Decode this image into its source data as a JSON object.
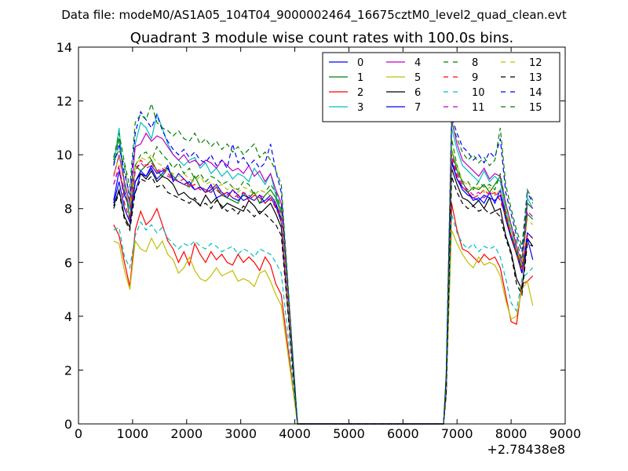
{
  "suptitle": "Data file: modeM0/AS1A05_104T04_9000002464_16675cztM0_level2_quad_clean.evt",
  "chart_data": {
    "type": "line",
    "title": "Quadrant 3 module wise count rates with 100.0s bins.",
    "xlabel": "",
    "ylabel": "",
    "x_offset_label": "+2.78438e8",
    "xlim": [
      0,
      9000
    ],
    "ylim": [
      0,
      14
    ],
    "xticks": [
      0,
      1000,
      2000,
      3000,
      4000,
      5000,
      6000,
      7000,
      8000,
      9000
    ],
    "yticks": [
      0,
      2,
      4,
      6,
      8,
      10,
      12,
      14
    ],
    "grid": false,
    "legend_placement": "top-right",
    "legend_columns": 4,
    "segments": [
      {
        "name": "seg1",
        "start": 650,
        "step": 100,
        "count": 32
      },
      {
        "name": "seg2",
        "start": 6750,
        "step": 100,
        "count": 17
      }
    ],
    "zero_gap": {
      "from": 4050,
      "to": 6750,
      "value": 0
    },
    "series": [
      {
        "name": "0",
        "color": "#0000ff",
        "dash": "solid",
        "seg1": [
          8.3,
          9.4,
          8.5,
          8.0,
          8.6,
          9.3,
          9.2,
          9.5,
          9.1,
          9.3,
          9.6,
          9.0,
          9.3,
          9.1,
          8.9,
          8.7,
          8.8,
          8.6,
          8.7,
          8.9,
          8.6,
          8.4,
          8.7,
          8.5,
          8.3,
          8.4,
          8.6,
          8.2,
          8.3,
          8.5,
          8.2,
          7.6
        ],
        "seg2": [
          1.2,
          9.8,
          9.1,
          8.8,
          8.6,
          8.3,
          8.4,
          8.2,
          8.6,
          8.2,
          8.7,
          7.7,
          7.0,
          6.5,
          5.6,
          7.1,
          6.9
        ]
      },
      {
        "name": "1",
        "color": "#008000",
        "dash": "solid",
        "seg1": [
          9.8,
          10.6,
          8.9,
          7.6,
          9.6,
          9.4,
          9.6,
          9.8,
          9.4,
          9.2,
          9.5,
          9.2,
          9.0,
          8.9,
          8.8,
          9.2,
          8.8,
          8.7,
          8.6,
          8.8,
          8.5,
          8.4,
          8.3,
          8.2,
          8.6,
          8.4,
          8.6,
          8.2,
          8.5,
          8.7,
          8.4,
          7.8
        ],
        "seg2": [
          1.4,
          10.2,
          9.4,
          9.0,
          8.6,
          8.8,
          8.7,
          8.9,
          8.6,
          8.9,
          9.2,
          7.8,
          7.0,
          6.4,
          5.8,
          7.8,
          7.6
        ]
      },
      {
        "name": "2",
        "color": "#ff0000",
        "dash": "solid",
        "seg1": [
          7.4,
          7.0,
          6.0,
          5.1,
          7.2,
          7.9,
          7.4,
          7.6,
          8.0,
          7.4,
          6.8,
          6.5,
          6.0,
          6.4,
          5.9,
          6.7,
          6.3,
          6.0,
          6.4,
          6.1,
          6.3,
          6.0,
          5.9,
          6.3,
          6.0,
          6.2,
          6.0,
          5.7,
          6.2,
          5.9,
          5.2,
          4.8
        ],
        "seg2": [
          1.3,
          8.2,
          7.2,
          6.5,
          6.4,
          6.2,
          6.0,
          6.3,
          6.1,
          6.2,
          5.8,
          4.8,
          3.8,
          3.7,
          5.2,
          5.3,
          5.5
        ]
      },
      {
        "name": "3",
        "color": "#00bfbf",
        "dash": "solid",
        "seg1": [
          9.6,
          11.0,
          8.7,
          8.0,
          10.4,
          11.2,
          11.0,
          10.6,
          11.5,
          11.0,
          10.4,
          10.0,
          9.8,
          9.6,
          9.8,
          9.9,
          9.5,
          9.7,
          9.3,
          9.5,
          9.2,
          9.4,
          9.1,
          9.3,
          9.2,
          9.0,
          9.5,
          9.2,
          8.9,
          9.3,
          8.5,
          7.9
        ],
        "seg2": [
          1.6,
          11.0,
          10.2,
          9.6,
          9.4,
          9.2,
          9.0,
          9.4,
          9.0,
          9.2,
          9.0,
          8.0,
          7.2,
          6.5,
          6.0,
          8.4,
          8.0
        ]
      },
      {
        "name": "4",
        "color": "#bf00bf",
        "dash": "solid",
        "seg1": [
          9.2,
          10.0,
          9.0,
          8.2,
          10.3,
          10.4,
          10.8,
          10.5,
          10.7,
          10.6,
          10.3,
          10.0,
          9.8,
          10.0,
          9.7,
          9.8,
          9.6,
          9.8,
          9.7,
          9.5,
          9.8,
          9.6,
          9.4,
          9.5,
          9.3,
          9.6,
          9.2,
          9.4,
          9.0,
          9.3,
          8.7,
          8.2
        ],
        "seg2": [
          1.5,
          11.3,
          10.4,
          9.8,
          9.6,
          9.4,
          9.2,
          9.5,
          9.1,
          9.3,
          9.2,
          8.2,
          7.4,
          6.6,
          5.9,
          8.2,
          8.0
        ]
      },
      {
        "name": "5",
        "color": "#bfbf00",
        "dash": "solid",
        "seg1": [
          6.8,
          6.7,
          5.7,
          5.0,
          6.8,
          6.5,
          6.4,
          6.9,
          6.5,
          6.8,
          6.3,
          6.1,
          5.6,
          5.8,
          6.2,
          5.7,
          5.4,
          5.3,
          5.5,
          5.8,
          5.5,
          5.6,
          5.7,
          5.3,
          5.4,
          5.3,
          5.1,
          5.6,
          5.7,
          5.3,
          4.8,
          4.4
        ],
        "seg2": [
          1.2,
          7.2,
          6.7,
          6.3,
          6.0,
          5.8,
          6.2,
          5.9,
          6.0,
          5.9,
          5.5,
          4.6,
          3.9,
          4.0,
          5.0,
          5.3,
          4.4
        ]
      },
      {
        "name": "6",
        "color": "#000000",
        "dash": "solid",
        "seg1": [
          8.1,
          8.7,
          7.7,
          7.3,
          9.0,
          9.3,
          9.1,
          9.4,
          9.0,
          9.2,
          9.1,
          8.9,
          8.5,
          8.6,
          8.4,
          8.3,
          8.1,
          8.5,
          8.2,
          8.4,
          8.0,
          8.2,
          8.1,
          8.0,
          7.9,
          8.3,
          8.1,
          7.8,
          8.0,
          8.2,
          7.8,
          7.3
        ],
        "seg2": [
          1.2,
          9.5,
          8.9,
          8.4,
          8.3,
          8.1,
          8.3,
          8.0,
          8.4,
          7.9,
          8.0,
          7.0,
          6.4,
          5.4,
          5.0,
          6.9,
          6.6
        ]
      },
      {
        "name": "7",
        "color": "#0000ff",
        "dash": "solid",
        "seg1": [
          8.2,
          9.0,
          8.0,
          7.5,
          9.0,
          9.4,
          9.2,
          9.6,
          9.3,
          9.4,
          9.5,
          9.1,
          9.0,
          8.9,
          9.0,
          8.7,
          8.8,
          8.6,
          8.9,
          8.4,
          8.5,
          8.6,
          8.4,
          8.3,
          8.5,
          8.4,
          8.3,
          8.5,
          8.2,
          8.4,
          8.1,
          7.5
        ],
        "seg2": [
          1.3,
          9.7,
          9.1,
          8.7,
          8.5,
          8.4,
          8.3,
          8.5,
          8.4,
          8.3,
          8.5,
          7.6,
          6.9,
          6.3,
          5.6,
          6.9,
          6.1
        ]
      },
      {
        "name": "8",
        "color": "#008000",
        "dash": "dashed",
        "seg1": [
          9.7,
          10.2,
          9.6,
          8.3,
          9.6,
          10.0,
          10.1,
          9.8,
          10.3,
          10.0,
          9.8,
          9.5,
          9.7,
          9.3,
          9.5,
          9.1,
          9.3,
          9.0,
          9.2,
          9.1,
          8.9,
          9.0,
          8.8,
          8.7,
          9.0,
          8.9,
          8.5,
          8.7,
          8.6,
          8.9,
          8.6,
          8.0
        ],
        "seg2": [
          1.5,
          10.6,
          9.6,
          9.0,
          9.0,
          8.7,
          9.0,
          8.8,
          8.9,
          8.7,
          9.3,
          8.2,
          7.4,
          6.8,
          6.1,
          8.2,
          8.0
        ]
      },
      {
        "name": "9",
        "color": "#ff0000",
        "dash": "dashed",
        "seg1": [
          8.9,
          9.6,
          8.2,
          7.6,
          9.4,
          9.8,
          9.6,
          9.7,
          9.4,
          9.5,
          9.3,
          9.1,
          9.0,
          9.1,
          8.8,
          8.9,
          8.7,
          8.6,
          8.8,
          8.7,
          8.5,
          8.6,
          8.4,
          8.5,
          8.6,
          8.3,
          8.5,
          8.4,
          8.2,
          8.4,
          8.0,
          7.6
        ],
        "seg2": [
          1.3,
          9.9,
          9.2,
          8.8,
          8.6,
          8.4,
          8.5,
          8.7,
          8.5,
          8.6,
          8.3,
          7.7,
          7.0,
          6.3,
          5.7,
          7.0,
          6.9
        ]
      },
      {
        "name": "10",
        "color": "#00bfbf",
        "dash": "dashed",
        "seg1": [
          7.2,
          7.3,
          6.2,
          5.8,
          7.0,
          7.5,
          7.2,
          7.4,
          7.1,
          7.3,
          6.9,
          6.7,
          6.5,
          6.7,
          6.6,
          6.8,
          6.6,
          6.5,
          6.7,
          6.6,
          6.4,
          6.5,
          6.6,
          6.3,
          6.5,
          6.4,
          6.2,
          6.5,
          6.4,
          6.3,
          6.0,
          5.6
        ],
        "seg2": [
          1.4,
          7.8,
          7.1,
          6.7,
          6.5,
          6.7,
          6.4,
          6.6,
          6.5,
          6.6,
          6.2,
          5.4,
          4.5,
          4.2,
          5.4,
          5.6,
          5.8
        ]
      },
      {
        "name": "11",
        "color": "#bf00bf",
        "dash": "dashed",
        "seg1": [
          8.9,
          9.5,
          8.6,
          8.1,
          9.4,
          9.7,
          9.5,
          9.6,
          9.3,
          9.5,
          9.2,
          9.1,
          9.0,
          8.9,
          8.9,
          8.7,
          8.8,
          8.7,
          8.6,
          8.8,
          8.6,
          8.5,
          8.7,
          8.4,
          8.6,
          8.5,
          8.3,
          8.5,
          8.4,
          8.3,
          8.2,
          7.7
        ],
        "seg2": [
          1.5,
          10.0,
          9.3,
          8.9,
          8.7,
          8.5,
          8.6,
          8.4,
          8.6,
          8.5,
          8.6,
          7.9,
          7.2,
          6.6,
          6.0,
          7.9,
          7.7
        ]
      },
      {
        "name": "12",
        "color": "#bfbf00",
        "dash": "dashed",
        "seg1": [
          9.3,
          9.9,
          8.8,
          8.1,
          9.6,
          9.9,
          9.8,
          10.0,
          9.7,
          9.6,
          9.4,
          9.3,
          9.2,
          9.3,
          9.1,
          9.0,
          9.2,
          8.9,
          9.0,
          8.8,
          8.9,
          8.7,
          8.8,
          8.6,
          8.8,
          8.7,
          8.5,
          8.7,
          8.6,
          8.5,
          8.3,
          7.8
        ],
        "seg2": [
          1.4,
          10.2,
          9.6,
          9.0,
          8.9,
          8.7,
          8.8,
          8.6,
          8.8,
          8.5,
          8.7,
          8.0,
          7.2,
          6.5,
          5.9,
          7.6,
          7.4
        ]
      },
      {
        "name": "13",
        "color": "#000000",
        "dash": "dashed",
        "seg1": [
          8.0,
          8.6,
          7.6,
          7.2,
          8.6,
          9.1,
          9.0,
          9.2,
          8.8,
          8.9,
          8.6,
          8.5,
          8.4,
          8.3,
          8.2,
          8.4,
          8.1,
          8.2,
          8.0,
          8.3,
          8.1,
          7.9,
          8.0,
          7.8,
          8.1,
          7.9,
          7.7,
          7.9,
          7.8,
          7.6,
          7.4,
          7.0
        ],
        "seg2": [
          1.1,
          9.2,
          8.6,
          8.2,
          8.0,
          8.1,
          7.9,
          8.0,
          7.8,
          7.9,
          7.7,
          6.9,
          6.3,
          5.2,
          4.8,
          6.7,
          6.6
        ]
      },
      {
        "name": "14",
        "color": "#0000ff",
        "dash": "dashed",
        "seg1": [
          9.6,
          10.4,
          9.3,
          8.5,
          10.8,
          11.6,
          11.3,
          11.0,
          11.5,
          10.9,
          10.5,
          10.2,
          10.0,
          10.2,
          9.9,
          10.1,
          9.8,
          9.7,
          10.0,
          9.6,
          9.8,
          9.5,
          10.4,
          9.7,
          9.9,
          9.6,
          9.8,
          9.5,
          9.7,
          10.4,
          9.4,
          8.6
        ],
        "seg2": [
          1.8,
          11.4,
          10.8,
          10.3,
          10.1,
          9.8,
          10.0,
          9.7,
          10.1,
          9.9,
          10.6,
          8.6,
          7.8,
          7.0,
          6.4,
          8.6,
          8.2
        ]
      },
      {
        "name": "15",
        "color": "#008000",
        "dash": "dashed",
        "seg1": [
          9.9,
          10.8,
          9.7,
          8.8,
          11.2,
          11.5,
          11.3,
          11.9,
          11.2,
          11.0,
          10.9,
          10.7,
          10.9,
          10.6,
          10.5,
          10.8,
          10.4,
          10.6,
          10.3,
          10.5,
          10.2,
          10.4,
          10.1,
          10.3,
          10.0,
          10.2,
          10.4,
          9.9,
          10.1,
          9.8,
          9.4,
          8.9
        ],
        "seg2": [
          1.9,
          11.2,
          10.6,
          10.1,
          9.8,
          10.0,
          9.7,
          9.9,
          9.6,
          9.8,
          11.0,
          8.9,
          8.0,
          7.2,
          6.6,
          8.7,
          8.3
        ]
      }
    ]
  }
}
